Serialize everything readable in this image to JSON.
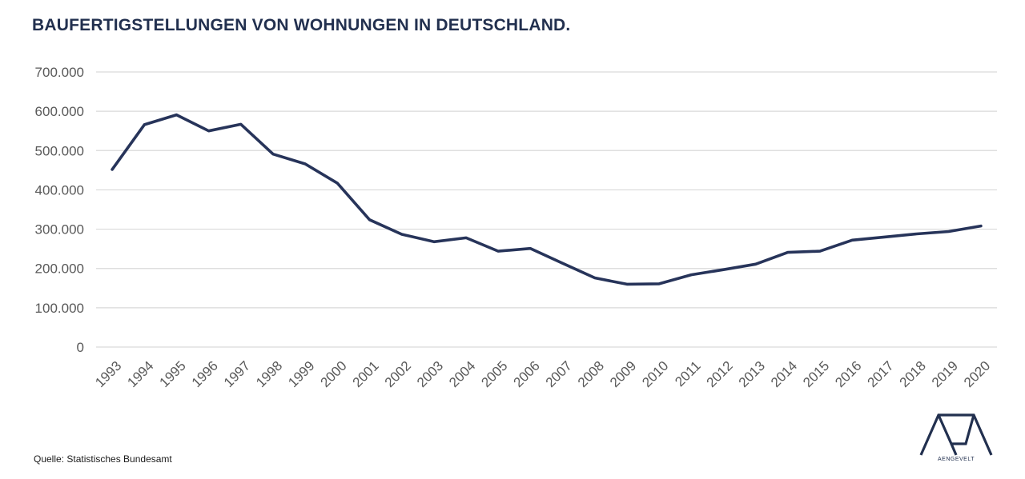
{
  "title": "BAUFERTIGSTELLUNGEN VON WOHNUNGEN IN DEUTSCHLAND.",
  "source": "Quelle: Statistisches Bundesamt",
  "logo": {
    "icon": "aengevelt-logo-icon",
    "text": "AENGEVELT"
  },
  "colors": {
    "line": "#27345a",
    "title": "#22304f",
    "grid": "#d9d9d9",
    "tick": "#595959"
  },
  "chart_data": {
    "type": "line",
    "title": "BAUFERTIGSTELLUNGEN VON WOHNUNGEN IN DEUTSCHLAND.",
    "xlabel": "",
    "ylabel": "",
    "ylim": [
      0,
      700000
    ],
    "yticks": [
      0,
      100000,
      200000,
      300000,
      400000,
      500000,
      600000,
      700000
    ],
    "ytick_labels": [
      "0",
      "100.000",
      "200.000",
      "300.000",
      "400.000",
      "500.000",
      "600.000",
      "700.000"
    ],
    "grid": true,
    "legend": "none",
    "categories": [
      "1993",
      "1994",
      "1995",
      "1996",
      "1997",
      "1998",
      "1999",
      "2000",
      "2001",
      "2002",
      "2003",
      "2004",
      "2005",
      "2006",
      "2007",
      "2008",
      "2009",
      "2010",
      "2011",
      "2012",
      "2013",
      "2014",
      "2015",
      "2016",
      "2017",
      "2018",
      "2019",
      "2020"
    ],
    "series": [
      {
        "values": [
          452000,
          566000,
          591000,
          550000,
          567000,
          491000,
          466000,
          417000,
          324000,
          287000,
          268000,
          278000,
          244000,
          251000,
          213000,
          176000,
          160000,
          161000,
          184000,
          197000,
          211000,
          241000,
          244000,
          272000,
          280000,
          288000,
          294000,
          308000
        ]
      }
    ]
  }
}
